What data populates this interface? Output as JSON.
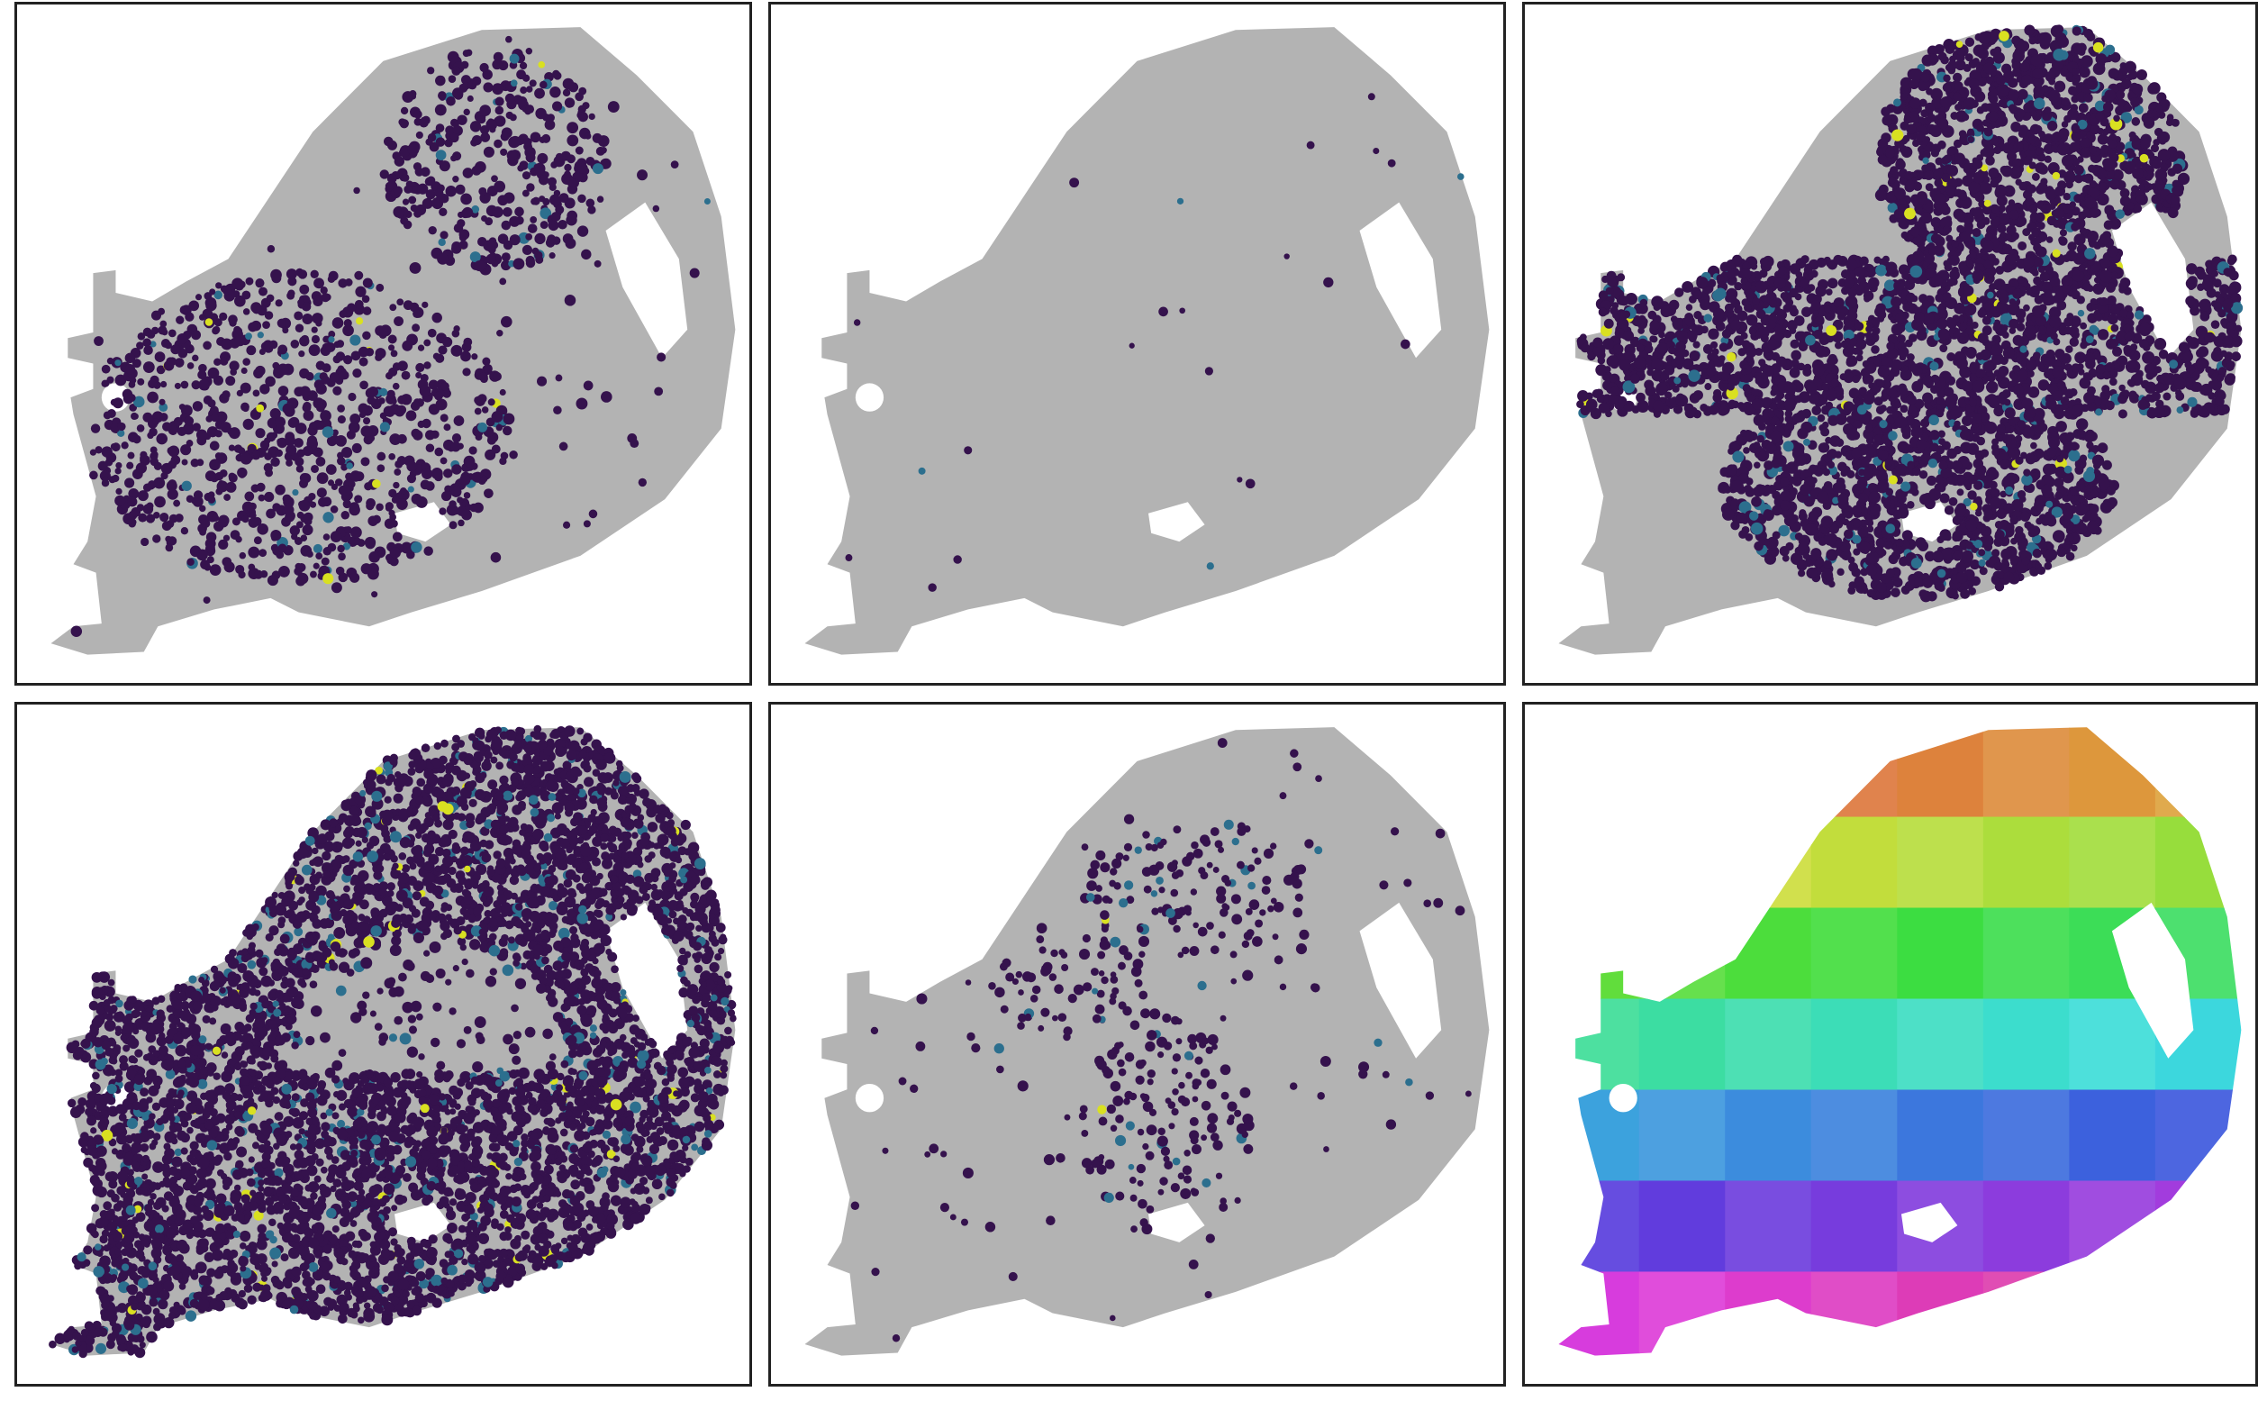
{
  "figure": {
    "panels": [
      {
        "id": "panel-1",
        "style": "expression",
        "pattern": "lower-left-and-top-right-clusters"
      },
      {
        "id": "panel-2",
        "style": "expression",
        "pattern": "sparse-scattered"
      },
      {
        "id": "panel-3",
        "style": "expression",
        "pattern": "broad-band-and-top-right"
      },
      {
        "id": "panel-4",
        "style": "expression",
        "pattern": "dense-outer-ring"
      },
      {
        "id": "panel-5",
        "style": "expression",
        "pattern": "sparse-clusters"
      },
      {
        "id": "panel-6",
        "style": "spatial-grid",
        "pattern": "rainbow-tiles"
      }
    ],
    "colors": {
      "background_tissue": "#b3b3b3",
      "low_expression": "#35124d",
      "mid_expression": "#2c6f8e",
      "high_expression": "#d9e021",
      "panel_border": "#222222"
    }
  }
}
